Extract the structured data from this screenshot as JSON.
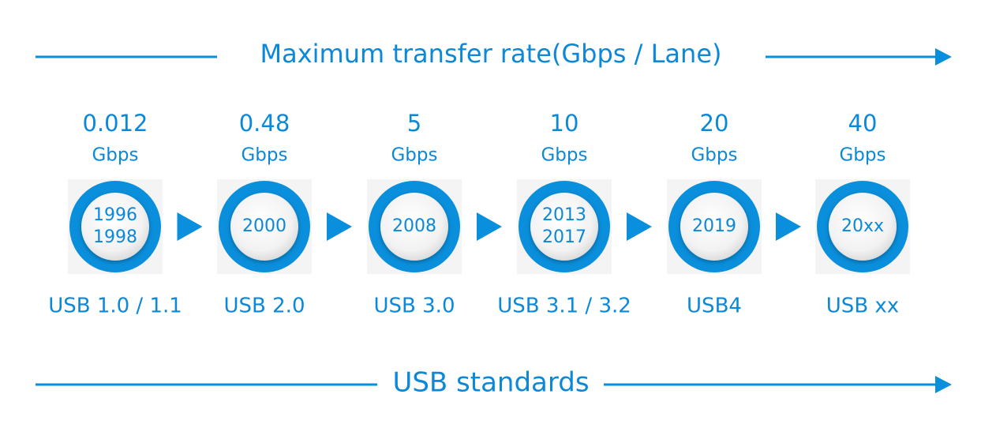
{
  "header": {
    "title": "Maximum transfer rate(Gbps / Lane)"
  },
  "footer": {
    "title": "USB standards"
  },
  "items": [
    {
      "rate": "0.012",
      "unit": "Gbps",
      "years": [
        "1996",
        "1998"
      ],
      "standard": "USB 1.0 / 1.1"
    },
    {
      "rate": "0.48",
      "unit": "Gbps",
      "years": [
        "2000"
      ],
      "standard": "USB 2.0"
    },
    {
      "rate": "5",
      "unit": "Gbps",
      "years": [
        "2008"
      ],
      "standard": "USB 3.0"
    },
    {
      "rate": "10",
      "unit": "Gbps",
      "years": [
        "2013",
        "2017"
      ],
      "standard": "USB 3.1 / 3.2"
    },
    {
      "rate": "20",
      "unit": "Gbps",
      "years": [
        "2019"
      ],
      "standard": "USB4"
    },
    {
      "rate": "40",
      "unit": "Gbps",
      "years": [
        "20xx"
      ],
      "standard": "USB xx"
    }
  ]
}
